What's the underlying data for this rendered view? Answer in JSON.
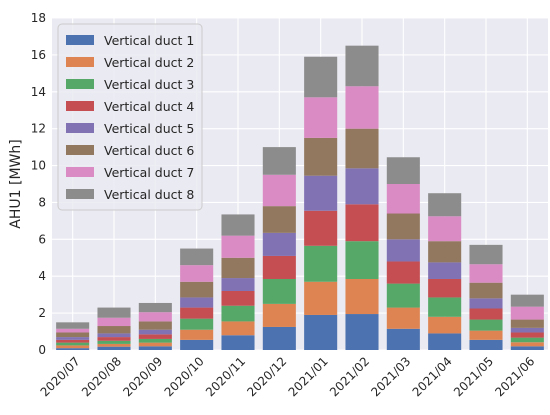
{
  "chart_data": {
    "type": "bar",
    "stacked": true,
    "title": "",
    "xlabel": "",
    "ylabel": "AHU1 [MWh]",
    "ylim": [
      0,
      18
    ],
    "yticks": [
      0,
      2,
      4,
      6,
      8,
      10,
      12,
      14,
      16,
      18
    ],
    "grid": true,
    "legend_position": "top-left",
    "categories": [
      "2020/07",
      "2020/08",
      "2020/09",
      "2020/10",
      "2020/11",
      "2020/12",
      "2021/01",
      "2021/02",
      "2021/03",
      "2021/04",
      "2021/05",
      "2021/06"
    ],
    "series": [
      {
        "name": "Vertical duct 1",
        "color": "#4c72b0",
        "values": [
          0.1,
          0.18,
          0.2,
          0.55,
          0.8,
          1.25,
          1.9,
          1.95,
          1.15,
          0.9,
          0.55,
          0.2
        ]
      },
      {
        "name": "Vertical duct 2",
        "color": "#dd8452",
        "values": [
          0.15,
          0.15,
          0.2,
          0.55,
          0.75,
          1.25,
          1.8,
          1.9,
          1.15,
          0.9,
          0.5,
          0.22
        ]
      },
      {
        "name": "Vertical duct 3",
        "color": "#55a868",
        "values": [
          0.15,
          0.17,
          0.2,
          0.6,
          0.85,
          1.35,
          1.95,
          2.05,
          1.3,
          1.05,
          0.6,
          0.25
        ]
      },
      {
        "name": "Vertical duct 4",
        "color": "#c44e52",
        "values": [
          0.15,
          0.2,
          0.25,
          0.6,
          0.8,
          1.25,
          1.9,
          2.0,
          1.2,
          1.0,
          0.6,
          0.28
        ]
      },
      {
        "name": "Vertical duct 5",
        "color": "#8172b3",
        "values": [
          0.15,
          0.2,
          0.25,
          0.55,
          0.7,
          1.25,
          1.9,
          1.95,
          1.2,
          0.9,
          0.55,
          0.25
        ]
      },
      {
        "name": "Vertical duct 6",
        "color": "#937860",
        "values": [
          0.25,
          0.4,
          0.45,
          0.85,
          1.1,
          1.45,
          2.05,
          2.15,
          1.4,
          1.15,
          0.85,
          0.45
        ]
      },
      {
        "name": "Vertical duct 7",
        "color": "#da8bc3",
        "values": [
          0.2,
          0.45,
          0.5,
          0.9,
          1.2,
          1.7,
          2.2,
          2.3,
          1.6,
          1.35,
          1.0,
          0.7
        ]
      },
      {
        "name": "Vertical duct 8",
        "color": "#8c8c8c",
        "values": [
          0.35,
          0.55,
          0.5,
          0.9,
          1.15,
          1.5,
          2.2,
          2.2,
          1.45,
          1.25,
          1.05,
          0.65
        ]
      }
    ]
  }
}
